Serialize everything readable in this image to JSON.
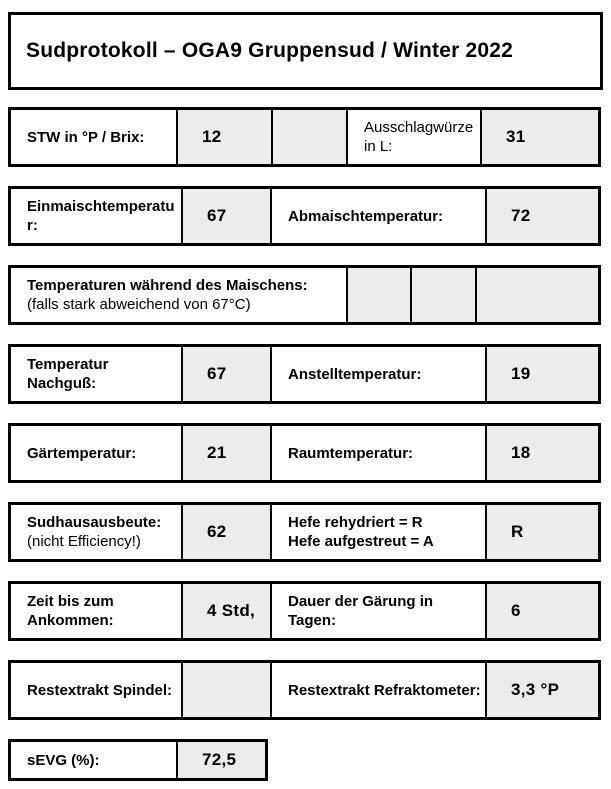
{
  "title": "Sudprotokoll – OGA9 Gruppensud / Winter 2022",
  "colors": {
    "cell_fill": "#ececec",
    "border": "#000000"
  },
  "rows": {
    "stw": {
      "label1": "STW in °P / Brix:",
      "value1": "12",
      "value2": "",
      "label2": "Ausschlagwürze in L:",
      "value3": "31"
    },
    "mash_temps": {
      "label1": "Einmaischtemperatur:",
      "value1": "67",
      "label2": "Abmaischtemperatur:",
      "value2": "72"
    },
    "mash_profile": {
      "label_bold": "Temperaturen während des Maischens:",
      "label_note": "(falls stark abweichend von 67°C)",
      "value1": "",
      "value2": "",
      "value3": ""
    },
    "sparge": {
      "label1": "Temperatur Nachguß:",
      "value1": "67",
      "label2": "Anstelltemperatur:",
      "value2": "19"
    },
    "ferment": {
      "label1": "Gärtemperatur:",
      "value1": "21",
      "label2": "Raumtemperatur:",
      "value2": "18"
    },
    "yield": {
      "label_bold": "Sudhausausbeute:",
      "label_note": "(nicht Efficiency!)",
      "value1": "62",
      "label2_line1": "Hefe rehydriert = R",
      "label2_line2": "Hefe aufgestreut = A",
      "value2": "R"
    },
    "timing": {
      "label1": "Zeit bis zum Ankommen:",
      "value1": "4 Std,",
      "label2": "Dauer der Gärung in Tagen:",
      "value2": "6"
    },
    "rest_extract": {
      "label1": "Restextrakt Spindel:",
      "value1": "",
      "label2": "Restextrakt Refraktometer:",
      "value2": "3,3 °P"
    },
    "sevg": {
      "label": "sEVG (%):",
      "value": "72,5"
    }
  }
}
